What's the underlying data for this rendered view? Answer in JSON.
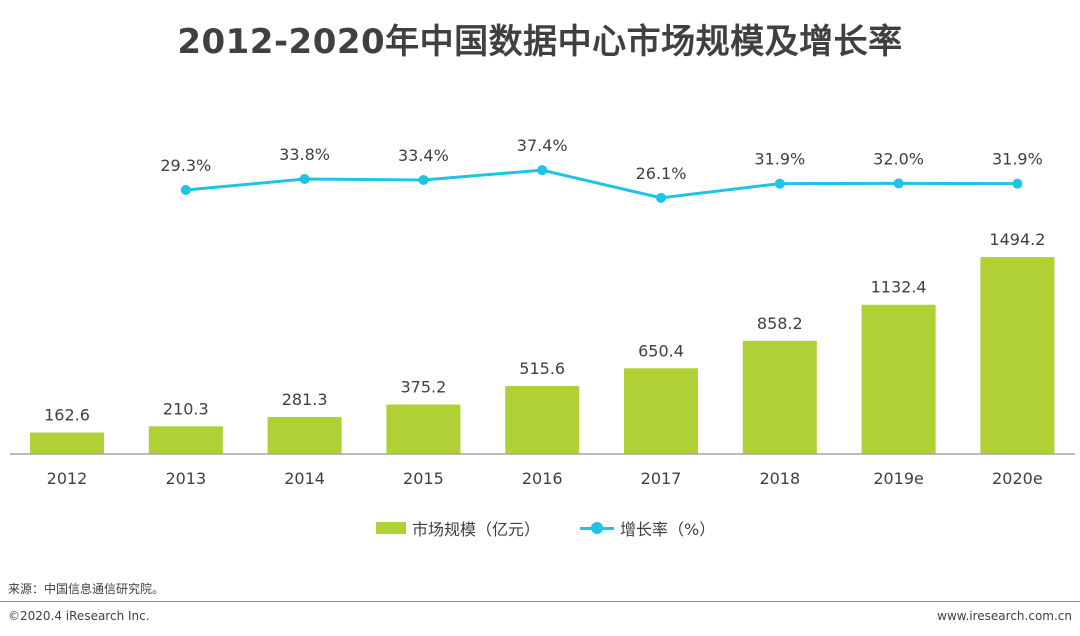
{
  "title": "2012-2020年中国数据中心市场规模及增长率",
  "legend": {
    "bar_label": "市场规模（亿元）",
    "line_label": "增长率（%）"
  },
  "source": "来源：中国信息通信研究院。",
  "footer": {
    "left": "©2020.4 iResearch Inc.",
    "right": "www.iresearch.com.cn"
  },
  "colors": {
    "bar": "#afd136",
    "line": "#1ec3e6",
    "axis": "#a6a6a6",
    "text": "#404040"
  },
  "chart_data": {
    "type": "bar",
    "categories": [
      "2012",
      "2013",
      "2014",
      "2015",
      "2016",
      "2017",
      "2018",
      "2019e",
      "2020e"
    ],
    "series": [
      {
        "name": "市场规模（亿元）",
        "type": "bar",
        "values": [
          162.6,
          210.3,
          281.3,
          375.2,
          515.6,
          650.4,
          858.2,
          1132.4,
          1494.2
        ],
        "labels": [
          "162.6",
          "210.3",
          "281.3",
          "375.2",
          "515.6",
          "650.4",
          "858.2",
          "1132.4",
          "1494.2"
        ]
      },
      {
        "name": "增长率（%）",
        "type": "line",
        "values": [
          null,
          29.3,
          33.8,
          33.4,
          37.4,
          26.1,
          31.9,
          32.0,
          31.9
        ],
        "labels": [
          "",
          "29.3%",
          "33.8%",
          "33.4%",
          "37.4%",
          "26.1%",
          "31.9%",
          "32.0%",
          "31.9%"
        ]
      }
    ],
    "grid": false,
    "legend_position": "bottom"
  }
}
